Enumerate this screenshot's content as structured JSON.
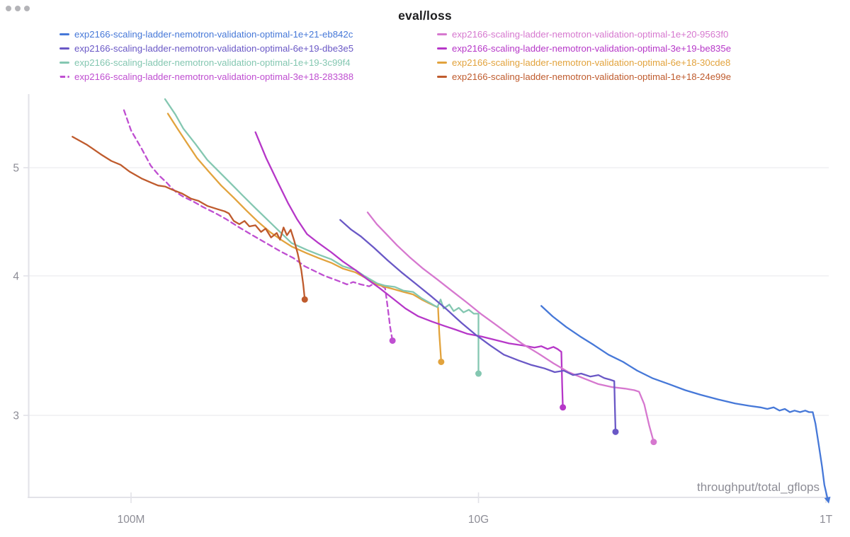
{
  "window": {
    "dots_color": "#b4b4b8"
  },
  "header": {
    "title": "eval/loss"
  },
  "chart_data": {
    "type": "line",
    "title": "eval/loss",
    "xlabel": "throughput/total_gflops",
    "ylabel": "",
    "x_scale": "log",
    "y_scale": "log",
    "x_range": [
      26000000.0,
      1050000000000.0
    ],
    "y_range": [
      2.5,
      5.85
    ],
    "grid": "horizontal-only",
    "legend_position": "top-two-columns",
    "x_ticks": [
      {
        "value": 100000000.0,
        "label": "100M"
      },
      {
        "value": 10000000000.0,
        "label": "10G"
      },
      {
        "value": 1000000000000.0,
        "label": "1T"
      }
    ],
    "y_ticks": [
      {
        "value": 5,
        "label": "5"
      },
      {
        "value": 4,
        "label": "4"
      },
      {
        "value": 3,
        "label": "3"
      }
    ],
    "colors": {
      "grid": "#ededf0",
      "axis": "#e2e2e8",
      "tick_label": "#8d8d96",
      "title": "#1d1d1f"
    },
    "series": [
      {
        "name": "exp2166-scaling-ladder-nemotron-validation-optimal-1e+21-eb842c",
        "color": "#4678d8",
        "dashed": false,
        "end_marker": "arrow",
        "points": [
          [
            23000000000.0,
            3.76
          ],
          [
            26700000000.0,
            3.68
          ],
          [
            32000000000.0,
            3.6
          ],
          [
            38500000000.0,
            3.53
          ],
          [
            46000000000.0,
            3.47
          ],
          [
            56000000000.0,
            3.4
          ],
          [
            68000000000.0,
            3.35
          ],
          [
            82000000000.0,
            3.29
          ],
          [
            100000000000.0,
            3.24
          ],
          [
            125000000000.0,
            3.2
          ],
          [
            155000000000.0,
            3.16
          ],
          [
            190000000000.0,
            3.13
          ],
          [
            240000000000.0,
            3.1
          ],
          [
            300000000000.0,
            3.075
          ],
          [
            360000000000.0,
            3.06
          ],
          [
            420000000000.0,
            3.05
          ],
          [
            460000000000.0,
            3.04
          ],
          [
            500000000000.0,
            3.05
          ],
          [
            540000000000.0,
            3.03
          ],
          [
            580000000000.0,
            3.04
          ],
          [
            620000000000.0,
            3.02
          ],
          [
            660000000000.0,
            3.03
          ],
          [
            710000000000.0,
            3.02
          ],
          [
            760000000000.0,
            3.03
          ],
          [
            800000000000.0,
            3.02
          ],
          [
            840000000000.0,
            3.02
          ],
          [
            870000000000.0,
            2.95
          ],
          [
            910000000000.0,
            2.82
          ],
          [
            950000000000.0,
            2.7
          ],
          [
            980000000000.0,
            2.6
          ],
          [
            1020000000000.0,
            2.53
          ]
        ]
      },
      {
        "name": "exp2166-scaling-ladder-nemotron-validation-optimal-1e+20-9563f0",
        "color": "#d678cf",
        "dashed": false,
        "end_marker": "dot",
        "points": [
          [
            2300000000.0,
            4.56
          ],
          [
            2600000000.0,
            4.45
          ],
          [
            2950000000.0,
            4.36
          ],
          [
            3400000000.0,
            4.26
          ],
          [
            4000000000.0,
            4.16
          ],
          [
            4800000000.0,
            4.06
          ],
          [
            5800000000.0,
            3.97
          ],
          [
            7000000000.0,
            3.88
          ],
          [
            8500000000.0,
            3.79
          ],
          [
            10300000000.0,
            3.7
          ],
          [
            12500000000.0,
            3.62
          ],
          [
            15000000000.0,
            3.545
          ],
          [
            18000000000.0,
            3.475
          ],
          [
            22000000000.0,
            3.41
          ],
          [
            27000000000.0,
            3.34
          ],
          [
            33000000000.0,
            3.28
          ],
          [
            40000000000.0,
            3.24
          ],
          [
            49000000000.0,
            3.2
          ],
          [
            59000000000.0,
            3.18
          ],
          [
            70000000000.0,
            3.17
          ],
          [
            79000000000.0,
            3.16
          ],
          [
            84000000000.0,
            3.15
          ],
          [
            90000000000.0,
            3.07
          ],
          [
            96000000000.0,
            2.94
          ],
          [
            102000000000.0,
            2.84
          ]
        ]
      },
      {
        "name": "exp2166-scaling-ladder-nemotron-validation-optimal-6e+19-dbe3e5",
        "color": "#6a58c6",
        "dashed": false,
        "end_marker": "dot",
        "points": [
          [
            1600000000.0,
            4.49
          ],
          [
            1850000000.0,
            4.4
          ],
          [
            2100000000.0,
            4.34
          ],
          [
            2500000000.0,
            4.24
          ],
          [
            3000000000.0,
            4.13
          ],
          [
            3600000000.0,
            4.03
          ],
          [
            4400000000.0,
            3.93
          ],
          [
            5400000000.0,
            3.83
          ],
          [
            6600000000.0,
            3.73
          ],
          [
            8000000000.0,
            3.63
          ],
          [
            9700000000.0,
            3.54
          ],
          [
            11700000000.0,
            3.465
          ],
          [
            14000000000.0,
            3.4
          ],
          [
            17000000000.0,
            3.36
          ],
          [
            20000000000.0,
            3.33
          ],
          [
            24000000000.0,
            3.305
          ],
          [
            27500000000.0,
            3.28
          ],
          [
            31000000000.0,
            3.29
          ],
          [
            35000000000.0,
            3.26
          ],
          [
            39000000000.0,
            3.27
          ],
          [
            44000000000.0,
            3.25
          ],
          [
            49000000000.0,
            3.26
          ],
          [
            53000000000.0,
            3.24
          ],
          [
            57000000000.0,
            3.23
          ],
          [
            60500000000.0,
            3.22
          ],
          [
            61000000000.0,
            3.05
          ],
          [
            61500000000.0,
            2.9
          ]
        ]
      },
      {
        "name": "exp2166-scaling-ladder-nemotron-validation-optimal-3e+19-be835e",
        "color": "#b637c8",
        "dashed": false,
        "end_marker": "dot",
        "points": [
          [
            520000000.0,
            5.38
          ],
          [
            600000000.0,
            5.1
          ],
          [
            700000000.0,
            4.85
          ],
          [
            800000000.0,
            4.65
          ],
          [
            900000000.0,
            4.5
          ],
          [
            1030000000.0,
            4.36
          ],
          [
            1200000000.0,
            4.28
          ],
          [
            1420000000.0,
            4.2
          ],
          [
            1660000000.0,
            4.12
          ],
          [
            1950000000.0,
            4.05
          ],
          [
            2300000000.0,
            3.97
          ],
          [
            2700000000.0,
            3.9
          ],
          [
            3200000000.0,
            3.82
          ],
          [
            3800000000.0,
            3.74
          ],
          [
            4500000000.0,
            3.68
          ],
          [
            5400000000.0,
            3.64
          ],
          [
            6300000000.0,
            3.61
          ],
          [
            7400000000.0,
            3.58
          ],
          [
            8600000000.0,
            3.55
          ],
          [
            10400000000.0,
            3.53
          ],
          [
            12500000000.0,
            3.505
          ],
          [
            15000000000.0,
            3.48
          ],
          [
            18000000000.0,
            3.465
          ],
          [
            21000000000.0,
            3.45
          ],
          [
            23000000000.0,
            3.46
          ],
          [
            25000000000.0,
            3.44
          ],
          [
            27000000000.0,
            3.455
          ],
          [
            28500000000.0,
            3.44
          ],
          [
            30000000000.0,
            3.42
          ],
          [
            30300000000.0,
            3.2
          ],
          [
            30600000000.0,
            3.05
          ]
        ]
      },
      {
        "name": "exp2166-scaling-ladder-nemotron-validation-optimal-1e+19-3c99f4",
        "color": "#84c7b1",
        "dashed": false,
        "end_marker": "dot",
        "points": [
          [
            157000000.0,
            5.76
          ],
          [
            180000000.0,
            5.58
          ],
          [
            200000000.0,
            5.42
          ],
          [
            235000000.0,
            5.25
          ],
          [
            275000000.0,
            5.08
          ],
          [
            325000000.0,
            4.95
          ],
          [
            380000000.0,
            4.83
          ],
          [
            440000000.0,
            4.72
          ],
          [
            520000000.0,
            4.6
          ],
          [
            620000000.0,
            4.48
          ],
          [
            720000000.0,
            4.38
          ],
          [
            840000000.0,
            4.28
          ],
          [
            1030000000.0,
            4.22
          ],
          [
            1200000000.0,
            4.18
          ],
          [
            1420000000.0,
            4.14
          ],
          [
            1660000000.0,
            4.08
          ],
          [
            1950000000.0,
            4.05
          ],
          [
            2200000000.0,
            4.0
          ],
          [
            2600000000.0,
            3.94
          ],
          [
            2900000000.0,
            3.92
          ],
          [
            3300000000.0,
            3.91
          ],
          [
            3700000000.0,
            3.88
          ],
          [
            4200000000.0,
            3.87
          ],
          [
            4700000000.0,
            3.82
          ],
          [
            5300000000.0,
            3.78
          ],
          [
            5800000000.0,
            3.75
          ],
          [
            6050000000.0,
            3.81
          ],
          [
            6300000000.0,
            3.74
          ],
          [
            6800000000.0,
            3.77
          ],
          [
            7200000000.0,
            3.72
          ],
          [
            7700000000.0,
            3.745
          ],
          [
            8200000000.0,
            3.71
          ],
          [
            8800000000.0,
            3.73
          ],
          [
            9400000000.0,
            3.7
          ],
          [
            10000000000.0,
            3.7
          ],
          [
            10000000000.0,
            3.27
          ]
        ]
      },
      {
        "name": "exp2166-scaling-ladder-nemotron-validation-optimal-6e+18-30cde8",
        "color": "#e2a33d",
        "dashed": false,
        "end_marker": "dot",
        "points": [
          [
            163000000.0,
            5.59
          ],
          [
            185000000.0,
            5.42
          ],
          [
            210000000.0,
            5.26
          ],
          [
            240000000.0,
            5.1
          ],
          [
            280000000.0,
            4.96
          ],
          [
            330000000.0,
            4.82
          ],
          [
            390000000.0,
            4.7
          ],
          [
            460000000.0,
            4.58
          ],
          [
            540000000.0,
            4.47
          ],
          [
            630000000.0,
            4.38
          ],
          [
            730000000.0,
            4.31
          ],
          [
            840000000.0,
            4.25
          ],
          [
            1030000000.0,
            4.19
          ],
          [
            1200000000.0,
            4.15
          ],
          [
            1420000000.0,
            4.11
          ],
          [
            1660000000.0,
            4.06
          ],
          [
            1950000000.0,
            4.03
          ],
          [
            2200000000.0,
            3.99
          ],
          [
            2600000000.0,
            3.93
          ],
          [
            2900000000.0,
            3.91
          ],
          [
            3300000000.0,
            3.89
          ],
          [
            3700000000.0,
            3.87
          ],
          [
            4200000000.0,
            3.85
          ],
          [
            4700000000.0,
            3.81
          ],
          [
            5200000000.0,
            3.78
          ],
          [
            5600000000.0,
            3.76
          ],
          [
            5850000000.0,
            3.75
          ],
          [
            5950000000.0,
            3.55
          ],
          [
            6100000000.0,
            3.35
          ]
        ]
      },
      {
        "name": "exp2166-scaling-ladder-nemotron-validation-optimal-3e+18-283388",
        "color": "#bf4fd1",
        "dashed": true,
        "end_marker": "dot",
        "points": [
          [
            91000000.0,
            5.63
          ],
          [
            100000000.0,
            5.4
          ],
          [
            115000000.0,
            5.2
          ],
          [
            130000000.0,
            5.02
          ],
          [
            145000000.0,
            4.92
          ],
          [
            160000000.0,
            4.85
          ],
          [
            172000000.0,
            4.79
          ],
          [
            185000000.0,
            4.745
          ],
          [
            200000000.0,
            4.71
          ],
          [
            230000000.0,
            4.66
          ],
          [
            260000000.0,
            4.61
          ],
          [
            300000000.0,
            4.56
          ],
          [
            350000000.0,
            4.5
          ],
          [
            420000000.0,
            4.42
          ],
          [
            500000000.0,
            4.35
          ],
          [
            600000000.0,
            4.28
          ],
          [
            720000000.0,
            4.21
          ],
          [
            860000000.0,
            4.15
          ],
          [
            1000000000.0,
            4.08
          ],
          [
            1300000000.0,
            4.0
          ],
          [
            1550000000.0,
            3.96
          ],
          [
            1750000000.0,
            3.93
          ],
          [
            1900000000.0,
            3.95
          ],
          [
            2100000000.0,
            3.93
          ],
          [
            2350000000.0,
            3.915
          ],
          [
            2550000000.0,
            3.945
          ],
          [
            2750000000.0,
            3.92
          ],
          [
            2900000000.0,
            3.9
          ],
          [
            3000000000.0,
            3.75
          ],
          [
            3100000000.0,
            3.6
          ],
          [
            3200000000.0,
            3.5
          ]
        ]
      },
      {
        "name": "exp2166-scaling-ladder-nemotron-validation-optimal-1e+18-24e99e",
        "color": "#bf5b2d",
        "dashed": false,
        "end_marker": "dot",
        "points": [
          [
            46000000.0,
            5.33
          ],
          [
            56000000.0,
            5.24
          ],
          [
            67000000.0,
            5.14
          ],
          [
            77000000.0,
            5.07
          ],
          [
            87000000.0,
            5.03
          ],
          [
            98000000.0,
            4.96
          ],
          [
            115000000.0,
            4.89
          ],
          [
            130000000.0,
            4.85
          ],
          [
            143000000.0,
            4.82
          ],
          [
            157000000.0,
            4.81
          ],
          [
            172000000.0,
            4.78
          ],
          [
            197000000.0,
            4.74
          ],
          [
            222000000.0,
            4.69
          ],
          [
            244000000.0,
            4.67
          ],
          [
            276000000.0,
            4.62
          ],
          [
            315000000.0,
            4.59
          ],
          [
            346000000.0,
            4.57
          ],
          [
            366000000.0,
            4.55
          ],
          [
            390000000.0,
            4.48
          ],
          [
            420000000.0,
            4.45
          ],
          [
            450000000.0,
            4.48
          ],
          [
            480000000.0,
            4.43
          ],
          [
            520000000.0,
            4.44
          ],
          [
            560000000.0,
            4.38
          ],
          [
            595000000.0,
            4.41
          ],
          [
            640000000.0,
            4.33
          ],
          [
            690000000.0,
            4.37
          ],
          [
            720000000.0,
            4.31
          ],
          [
            755000000.0,
            4.42
          ],
          [
            790000000.0,
            4.35
          ],
          [
            830000000.0,
            4.4
          ],
          [
            870000000.0,
            4.3
          ],
          [
            910000000.0,
            4.19
          ],
          [
            955000000.0,
            4.05
          ],
          [
            980000000.0,
            3.93
          ],
          [
            1000000000.0,
            3.81
          ]
        ]
      }
    ]
  }
}
